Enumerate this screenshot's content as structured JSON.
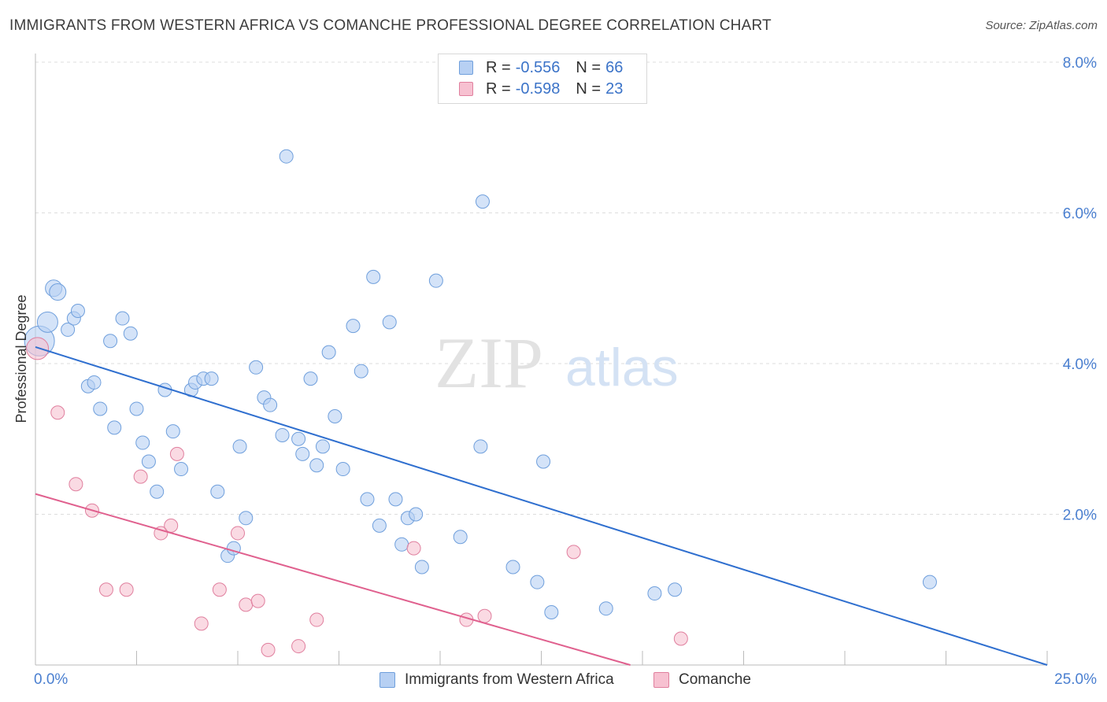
{
  "title": "IMMIGRANTS FROM WESTERN AFRICA VS COMANCHE PROFESSIONAL DEGREE CORRELATION CHART",
  "source": "Source: ZipAtlas.com",
  "watermark": {
    "zip": "ZIP",
    "atlas": "atlas"
  },
  "colors": {
    "blue_fill": "#b7d0f3",
    "blue_stroke": "#6f9fdc",
    "blue_line": "#2f6fcf",
    "pink_fill": "#f7c1d1",
    "pink_stroke": "#e07f9e",
    "pink_line": "#e0608e",
    "axis_text": "#4a7fd0",
    "grid": "#dddddd"
  },
  "legend": {
    "rows": [
      {
        "r_label": "R = ",
        "r_value": "-0.556",
        "n_label": "N = ",
        "n_value": "66"
      },
      {
        "r_label": "R = ",
        "r_value": "-0.598",
        "n_label": "N = ",
        "n_value": "23"
      }
    ]
  },
  "bottom_legend": [
    "Immigrants from Western Africa",
    "Comanche"
  ],
  "chart_data": {
    "type": "scatter",
    "title": "IMMIGRANTS FROM WESTERN AFRICA VS COMANCHE PROFESSIONAL DEGREE CORRELATION CHART",
    "xlabel": "",
    "ylabel": "Professional Degree",
    "xlim": [
      0,
      25
    ],
    "ylim": [
      0,
      8
    ],
    "x_tick_labels": [
      "0.0%",
      "25.0%"
    ],
    "y_ticks": [
      2,
      4,
      6,
      8
    ],
    "y_tick_labels": [
      "2.0%",
      "4.0%",
      "6.0%",
      "8.0%"
    ],
    "grid": true,
    "legend_position": "top-center",
    "series": [
      {
        "name": "Immigrants from Western Africa",
        "points": [
          [
            0.1,
            4.3
          ],
          [
            0.3,
            4.55
          ],
          [
            0.45,
            5.0
          ],
          [
            0.55,
            4.95
          ],
          [
            0.8,
            4.45
          ],
          [
            0.95,
            4.6
          ],
          [
            1.05,
            4.7
          ],
          [
            1.3,
            3.7
          ],
          [
            1.45,
            3.75
          ],
          [
            1.6,
            3.4
          ],
          [
            1.85,
            4.3
          ],
          [
            1.95,
            3.15
          ],
          [
            2.15,
            4.6
          ],
          [
            2.35,
            4.4
          ],
          [
            2.5,
            3.4
          ],
          [
            2.65,
            2.95
          ],
          [
            2.8,
            2.7
          ],
          [
            3.0,
            2.3
          ],
          [
            3.2,
            3.65
          ],
          [
            3.4,
            3.1
          ],
          [
            3.6,
            2.6
          ],
          [
            3.85,
            3.65
          ],
          [
            3.95,
            3.75
          ],
          [
            4.15,
            3.8
          ],
          [
            4.35,
            3.8
          ],
          [
            4.5,
            2.3
          ],
          [
            4.75,
            1.45
          ],
          [
            4.9,
            1.55
          ],
          [
            5.05,
            2.9
          ],
          [
            5.2,
            1.95
          ],
          [
            5.45,
            3.95
          ],
          [
            5.65,
            3.55
          ],
          [
            5.8,
            3.45
          ],
          [
            6.1,
            3.05
          ],
          [
            6.2,
            6.75
          ],
          [
            6.5,
            3.0
          ],
          [
            6.6,
            2.8
          ],
          [
            6.8,
            3.8
          ],
          [
            6.95,
            2.65
          ],
          [
            7.1,
            2.9
          ],
          [
            7.25,
            4.15
          ],
          [
            7.4,
            3.3
          ],
          [
            7.6,
            2.6
          ],
          [
            7.85,
            4.5
          ],
          [
            8.05,
            3.9
          ],
          [
            8.2,
            2.2
          ],
          [
            8.35,
            5.15
          ],
          [
            8.5,
            1.85
          ],
          [
            8.75,
            4.55
          ],
          [
            8.9,
            2.2
          ],
          [
            9.05,
            1.6
          ],
          [
            9.2,
            1.95
          ],
          [
            9.4,
            2.0
          ],
          [
            9.55,
            1.3
          ],
          [
            9.9,
            5.1
          ],
          [
            10.5,
            1.7
          ],
          [
            11.0,
            2.9
          ],
          [
            11.05,
            6.15
          ],
          [
            11.8,
            1.3
          ],
          [
            12.4,
            1.1
          ],
          [
            12.55,
            2.7
          ],
          [
            12.75,
            0.7
          ],
          [
            14.1,
            0.75
          ],
          [
            15.3,
            0.95
          ],
          [
            15.8,
            1.0
          ],
          [
            22.1,
            1.1
          ]
        ],
        "trend_line": [
          [
            0,
            4.22
          ],
          [
            25,
            0.0
          ]
        ]
      },
      {
        "name": "Comanche",
        "points": [
          [
            0.05,
            4.2
          ],
          [
            0.55,
            3.35
          ],
          [
            1.0,
            2.4
          ],
          [
            1.4,
            2.05
          ],
          [
            1.75,
            1.0
          ],
          [
            2.25,
            1.0
          ],
          [
            2.6,
            2.5
          ],
          [
            3.1,
            1.75
          ],
          [
            3.35,
            1.85
          ],
          [
            3.5,
            2.8
          ],
          [
            4.1,
            0.55
          ],
          [
            4.55,
            1.0
          ],
          [
            5.0,
            1.75
          ],
          [
            5.2,
            0.8
          ],
          [
            5.5,
            0.85
          ],
          [
            5.75,
            0.2
          ],
          [
            6.5,
            0.25
          ],
          [
            6.95,
            0.6
          ],
          [
            9.35,
            1.55
          ],
          [
            10.65,
            0.6
          ],
          [
            11.1,
            0.65
          ],
          [
            13.3,
            1.5
          ],
          [
            15.95,
            0.35
          ]
        ],
        "trend_line": [
          [
            0,
            2.27
          ],
          [
            14.7,
            0.0
          ]
        ]
      }
    ]
  }
}
